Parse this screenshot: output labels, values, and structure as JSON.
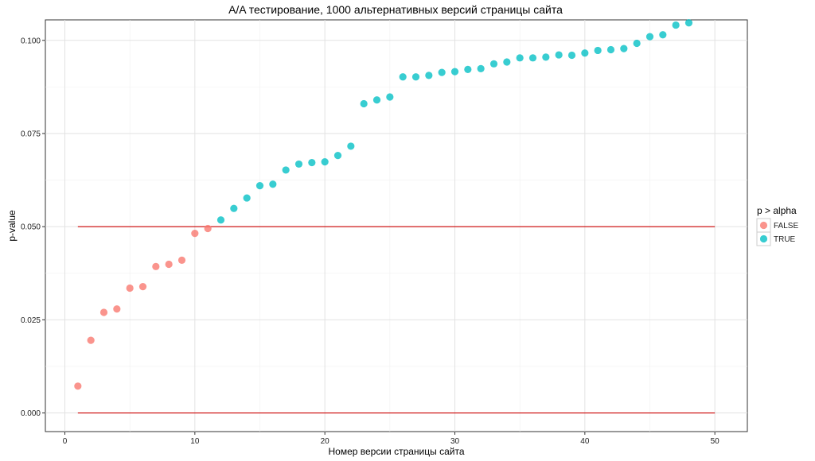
{
  "chart_data": {
    "type": "scatter",
    "title": "A/A тестирование, 1000 альтернативных версий страницы сайта",
    "xlabel": "Номер версии страницы сайта",
    "ylabel": "p-value",
    "xlim": [
      -1.5,
      52.5
    ],
    "ylim": [
      -0.005,
      0.1055
    ],
    "x_ticks": [
      0,
      10,
      20,
      30,
      40,
      50
    ],
    "x_tick_labels": [
      "0",
      "10",
      "20",
      "30",
      "40",
      "50"
    ],
    "y_ticks": [
      0,
      0.025,
      0.05,
      0.075,
      0.1
    ],
    "y_tick_labels": [
      "0.000",
      "0.025",
      "0.050",
      "0.075",
      "0.100"
    ],
    "grid": true,
    "legend": {
      "title": "p > alpha",
      "placement": "right",
      "entries": [
        {
          "label": "FALSE",
          "color": "#F8766D"
        },
        {
          "label": "TRUE",
          "color": "#00BFC4"
        }
      ]
    },
    "hlines": [
      {
        "y": 0.05,
        "x_from": 1,
        "x_to": 50,
        "color": "#cc0000"
      },
      {
        "y": 0.0,
        "x_from": 1,
        "x_to": 50,
        "color": "#cc0000"
      }
    ],
    "series": [
      {
        "name": "FALSE",
        "color": "#F8766D",
        "x": [
          1,
          2,
          3,
          4,
          5,
          6,
          7,
          8,
          9,
          10,
          11
        ],
        "y": [
          0.0072,
          0.0195,
          0.027,
          0.0279,
          0.0335,
          0.0339,
          0.0393,
          0.0399,
          0.041,
          0.0482,
          0.0495
        ]
      },
      {
        "name": "TRUE",
        "color": "#00BFC4",
        "x": [
          12,
          13,
          14,
          15,
          16,
          17,
          18,
          19,
          20,
          21,
          22,
          23,
          24,
          25,
          26,
          27,
          28,
          29,
          30,
          31,
          32,
          33,
          34,
          35,
          36,
          37,
          38,
          39,
          40,
          41,
          42,
          43,
          44,
          45,
          46,
          47,
          48
        ],
        "y": [
          0.0518,
          0.0549,
          0.0577,
          0.061,
          0.0614,
          0.0652,
          0.0668,
          0.0672,
          0.0674,
          0.0691,
          0.0716,
          0.083,
          0.084,
          0.0848,
          0.0902,
          0.0902,
          0.0906,
          0.0914,
          0.0916,
          0.0922,
          0.0924,
          0.0937,
          0.0942,
          0.0953,
          0.0953,
          0.0955,
          0.0961,
          0.096,
          0.0966,
          0.0973,
          0.0975,
          0.0978,
          0.0992,
          0.101,
          0.1015,
          0.1041,
          0.1047
        ]
      }
    ]
  }
}
